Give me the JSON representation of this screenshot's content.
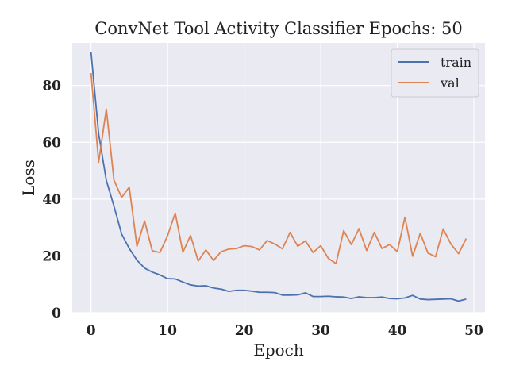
{
  "chart_data": {
    "type": "line",
    "title": "ConvNet Tool Activity Classifier Epochs: 50",
    "xlabel": "Epoch",
    "ylabel": "Loss",
    "xlim": [
      -2.45,
      51.45
    ],
    "ylim": [
      0,
      95
    ],
    "xticks": [
      0,
      10,
      20,
      30,
      40,
      50
    ],
    "yticks": [
      0,
      20,
      40,
      60,
      80
    ],
    "grid": true,
    "legend_position": "top-right",
    "colors": {
      "background": "#eaeaf2",
      "grid": "#ffffff",
      "train": "#4c72b0",
      "val": "#dd8452"
    },
    "x": [
      0,
      1,
      2,
      3,
      4,
      5,
      6,
      7,
      8,
      9,
      10,
      11,
      12,
      13,
      14,
      15,
      16,
      17,
      18,
      19,
      20,
      21,
      22,
      23,
      24,
      25,
      26,
      27,
      28,
      29,
      30,
      31,
      32,
      33,
      34,
      35,
      36,
      37,
      38,
      39,
      40,
      41,
      42,
      43,
      44,
      45,
      46,
      47,
      48,
      49
    ],
    "series": [
      {
        "name": "train",
        "values": [
          91.8,
          63.0,
          46.6,
          37.5,
          27.7,
          22.6,
          18.5,
          15.7,
          14.3,
          13.3,
          12.0,
          11.9,
          10.8,
          9.8,
          9.4,
          9.5,
          8.7,
          8.3,
          7.5,
          7.9,
          7.9,
          7.6,
          7.2,
          7.2,
          7.1,
          6.2,
          6.2,
          6.3,
          7.0,
          5.7,
          5.7,
          5.8,
          5.6,
          5.5,
          5.0,
          5.6,
          5.3,
          5.3,
          5.5,
          5.0,
          4.9,
          5.2,
          6.1,
          4.8,
          4.6,
          4.7,
          4.8,
          4.9,
          4.1,
          4.8
        ]
      },
      {
        "name": "val",
        "values": [
          84.4,
          53.0,
          71.7,
          46.7,
          40.6,
          44.2,
          23.4,
          32.3,
          21.8,
          21.2,
          27.1,
          35.1,
          21.3,
          27.2,
          18.2,
          22.1,
          18.4,
          21.5,
          22.4,
          22.6,
          23.6,
          23.3,
          22.1,
          25.4,
          24.2,
          22.5,
          28.3,
          23.4,
          25.3,
          21.2,
          23.6,
          19.1,
          17.3,
          28.9,
          24.0,
          29.6,
          21.9,
          28.3,
          22.6,
          24.0,
          21.5,
          33.6,
          19.9,
          28.0,
          21.0,
          19.7,
          29.5,
          24.2,
          20.8,
          26.1
        ]
      }
    ]
  }
}
